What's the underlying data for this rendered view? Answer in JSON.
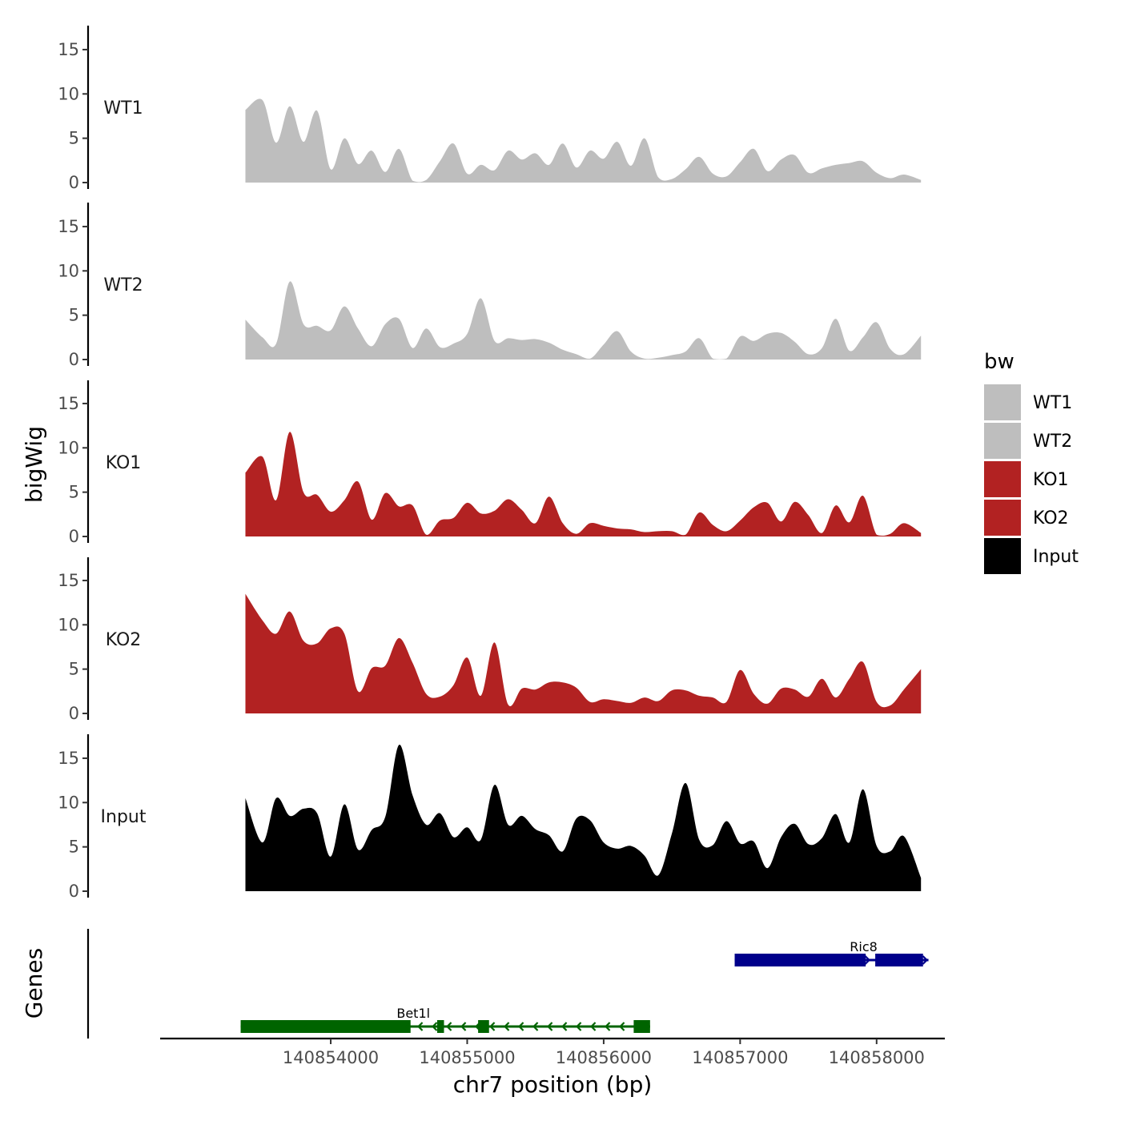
{
  "chart_data": {
    "type": "area",
    "title": "",
    "xlabel": "chr7 position (bp)",
    "ylabel": "bigWig",
    "gene_track_label": "Genes",
    "xlim": [
      140852750,
      140858500
    ],
    "x_ticks": [
      140854000,
      140855000,
      140856000,
      140857000,
      140858000
    ],
    "x_tick_labels": [
      "140854000",
      "140855000",
      "140856000",
      "140857000",
      "140858000"
    ],
    "ylim": [
      0,
      18
    ],
    "y_ticks": [
      0,
      5,
      10,
      15
    ],
    "y_tick_labels": [
      "0",
      "5",
      "10",
      "15"
    ],
    "legend": {
      "title": "bw",
      "position": "right",
      "entries": [
        {
          "label": "WT1",
          "color": "#bebebe"
        },
        {
          "label": "WT2",
          "color": "#bebebe"
        },
        {
          "label": "KO1",
          "color": "#b22222"
        },
        {
          "label": "KO2",
          "color": "#b22222"
        },
        {
          "label": "Input",
          "color": "#000000"
        }
      ]
    },
    "x_positions": [
      140853375,
      140853500,
      140853600,
      140853700,
      140853800,
      140853900,
      140854000,
      140854100,
      140854200,
      140854300,
      140854400,
      140854500,
      140854600,
      140854700,
      140854800,
      140854900,
      140855000,
      140855100,
      140855200,
      140855300,
      140855400,
      140855500,
      140855600,
      140855700,
      140855800,
      140855900,
      140856000,
      140856100,
      140856200,
      140856300,
      140856400,
      140856500,
      140856600,
      140856700,
      140856800,
      140856900,
      140857000,
      140857100,
      140857200,
      140857300,
      140857400,
      140857500,
      140857600,
      140857700,
      140857800,
      140857900,
      140858000,
      140858100,
      140858200,
      140858325
    ],
    "series": [
      {
        "name": "WT1",
        "color": "#bebebe",
        "values": [
          8.2,
          9.3,
          4.5,
          8.6,
          4.6,
          8.1,
          1.5,
          5.0,
          2.1,
          3.6,
          1.2,
          3.8,
          0.2,
          0.3,
          2.4,
          4.4,
          1.0,
          2.0,
          1.4,
          3.6,
          2.6,
          3.3,
          2.0,
          4.4,
          1.7,
          3.6,
          2.7,
          4.6,
          1.9,
          5.0,
          0.6,
          0.4,
          1.5,
          2.9,
          1.0,
          0.7,
          2.3,
          3.8,
          1.3,
          2.6,
          3.1,
          1.1,
          1.6,
          2.0,
          2.2,
          2.4,
          1.1,
          0.5,
          0.9,
          0.3
        ]
      },
      {
        "name": "WT2",
        "color": "#bebebe",
        "values": [
          4.5,
          2.5,
          1.8,
          8.8,
          4.0,
          3.8,
          3.3,
          6.0,
          3.5,
          1.5,
          4.0,
          4.6,
          1.3,
          3.5,
          1.4,
          1.8,
          2.9,
          6.9,
          2.1,
          2.4,
          2.2,
          2.3,
          1.9,
          1.1,
          0.6,
          0.1,
          1.7,
          3.2,
          0.9,
          0.1,
          0.2,
          0.5,
          0.9,
          2.4,
          0.1,
          0.1,
          2.6,
          2.1,
          2.9,
          3.0,
          2.0,
          0.6,
          1.3,
          4.6,
          1.0,
          2.5,
          4.2,
          1.2,
          0.6,
          2.7
        ]
      },
      {
        "name": "KO1",
        "color": "#b22222",
        "values": [
          7.2,
          9.0,
          4.1,
          11.8,
          5.0,
          4.7,
          2.8,
          4.1,
          6.2,
          1.9,
          4.9,
          3.4,
          3.5,
          0.2,
          1.8,
          2.1,
          3.8,
          2.6,
          2.9,
          4.2,
          3.0,
          1.5,
          4.5,
          1.5,
          0.3,
          1.5,
          1.2,
          0.9,
          0.8,
          0.5,
          0.6,
          0.6,
          0.2,
          2.7,
          1.3,
          0.6,
          1.8,
          3.3,
          3.8,
          1.7,
          3.9,
          2.4,
          0.4,
          3.5,
          1.6,
          4.6,
          0.2,
          0.3,
          1.5,
          0.4
        ]
      },
      {
        "name": "KO2",
        "color": "#b22222",
        "values": [
          13.5,
          10.5,
          9.0,
          11.5,
          8.2,
          7.9,
          9.6,
          9.0,
          2.5,
          5.1,
          5.4,
          8.5,
          5.7,
          2.2,
          1.9,
          3.2,
          6.3,
          2.0,
          8.0,
          1.0,
          2.8,
          2.7,
          3.5,
          3.5,
          2.9,
          1.3,
          1.6,
          1.4,
          1.2,
          1.8,
          1.4,
          2.6,
          2.6,
          2.0,
          1.8,
          1.3,
          4.9,
          2.2,
          1.1,
          2.8,
          2.7,
          1.9,
          3.9,
          1.8,
          3.9,
          5.8,
          1.3,
          0.9,
          2.7,
          5.0
        ]
      },
      {
        "name": "Input",
        "color": "#000000",
        "values": [
          10.5,
          5.5,
          10.5,
          8.5,
          9.3,
          8.8,
          3.9,
          9.8,
          4.7,
          6.9,
          8.4,
          16.5,
          10.8,
          7.5,
          8.8,
          6.1,
          7.2,
          5.8,
          12.0,
          7.5,
          8.5,
          7.0,
          6.3,
          4.5,
          8.2,
          8.0,
          5.5,
          4.8,
          5.1,
          4.0,
          1.8,
          6.5,
          12.2,
          5.8,
          5.2,
          7.9,
          5.4,
          5.6,
          2.6,
          6.1,
          7.6,
          5.3,
          6.0,
          8.7,
          5.5,
          11.5,
          5.1,
          4.5,
          6.2,
          1.5
        ]
      }
    ],
    "genes": [
      {
        "name": "Bet1l",
        "strand": "-",
        "color": "#006400",
        "start": 140853340,
        "end": 140856340,
        "exons": [
          [
            140853340,
            140854585
          ],
          [
            140854780,
            140854830
          ],
          [
            140855080,
            140855160
          ],
          [
            140856220,
            140856340
          ]
        ]
      },
      {
        "name": "Ric8",
        "strand": "+",
        "color": "#00008b",
        "start": 140856960,
        "end": 140858380,
        "exons": [
          [
            140856960,
            140857920
          ],
          [
            140857990,
            140858340
          ]
        ]
      }
    ]
  }
}
